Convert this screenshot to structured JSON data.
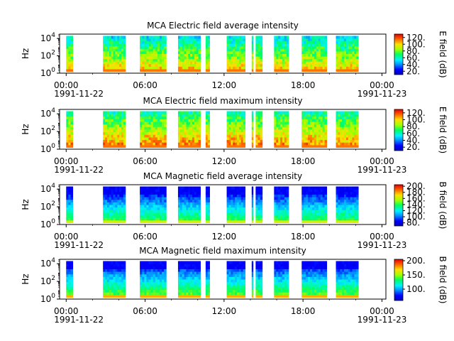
{
  "chart_data": [
    {
      "type": "heatmap",
      "title": "MCA  Electric field average intensity",
      "ylabel": "Hz",
      "y_ticks": [
        {
          "base": "10",
          "exp": "0"
        },
        {
          "base": "10",
          "exp": "2"
        },
        {
          "base": "10",
          "exp": "4"
        }
      ],
      "ylim_hz": [
        1,
        31623
      ],
      "y_scale": "log",
      "x_ticks": [
        "00:00",
        "06:00",
        "12:00",
        "18:00",
        "00:00"
      ],
      "x_dates": {
        "start": "1991-11-22",
        "end": "1991-11-23"
      },
      "xlim_hours": [
        -0.5,
        24.3
      ],
      "colorbar": {
        "label": "E field (dB)",
        "ticks": [
          "20.",
          "40.",
          "60.",
          "80.",
          "100.",
          "120."
        ],
        "range": [
          10,
          130
        ]
      },
      "data_hours": [
        [
          0,
          0.5
        ],
        [
          2.8,
          4.5
        ],
        [
          5.6,
          7.6
        ],
        [
          8.5,
          10.2
        ],
        [
          10.6,
          10.9
        ],
        [
          12.2,
          13.6
        ],
        [
          14.1,
          14.2
        ],
        [
          14.4,
          14.9
        ],
        [
          15.8,
          16.9
        ],
        [
          17.9,
          19.8
        ],
        [
          20.5,
          22.2
        ]
      ],
      "field": "electric",
      "mode": "average"
    },
    {
      "type": "heatmap",
      "title": "MCA  Electric field maximum intensity",
      "ylabel": "Hz",
      "y_ticks": [
        {
          "base": "10",
          "exp": "0"
        },
        {
          "base": "10",
          "exp": "2"
        },
        {
          "base": "10",
          "exp": "4"
        }
      ],
      "ylim_hz": [
        1,
        31623
      ],
      "y_scale": "log",
      "x_ticks": [
        "00:00",
        "06:00",
        "12:00",
        "18:00",
        "00:00"
      ],
      "x_dates": {
        "start": "1991-11-22",
        "end": "1991-11-23"
      },
      "xlim_hours": [
        -0.5,
        24.3
      ],
      "colorbar": {
        "label": "E field (dB)",
        "ticks": [
          "20.",
          "40.",
          "60.",
          "80.",
          "100.",
          "120."
        ],
        "range": [
          10,
          130
        ]
      },
      "data_hours": [
        [
          0,
          0.5
        ],
        [
          2.8,
          4.5
        ],
        [
          5.6,
          7.6
        ],
        [
          8.5,
          10.2
        ],
        [
          10.6,
          10.9
        ],
        [
          12.2,
          13.6
        ],
        [
          14.1,
          14.2
        ],
        [
          14.4,
          14.9
        ],
        [
          15.8,
          16.9
        ],
        [
          17.9,
          19.8
        ],
        [
          20.5,
          22.2
        ]
      ],
      "field": "electric",
      "mode": "maximum"
    },
    {
      "type": "heatmap",
      "title": "MCA  Magnetic field average intensity",
      "ylabel": "Hz",
      "y_ticks": [
        {
          "base": "10",
          "exp": "0"
        },
        {
          "base": "10",
          "exp": "2"
        },
        {
          "base": "10",
          "exp": "4"
        }
      ],
      "ylim_hz": [
        1,
        31623
      ],
      "y_scale": "log",
      "x_ticks": [
        "00:00",
        "06:00",
        "12:00",
        "18:00",
        "00:00"
      ],
      "x_dates": {
        "start": "1991-11-22",
        "end": "1991-11-23"
      },
      "xlim_hours": [
        -0.5,
        24.3
      ],
      "colorbar": {
        "label": "B field (dB)",
        "ticks": [
          "80.",
          "100.",
          "120.",
          "140.",
          "160.",
          "180.",
          "200."
        ],
        "range": [
          70,
          205
        ]
      },
      "data_hours": [
        [
          0,
          0.5
        ],
        [
          2.8,
          4.5
        ],
        [
          5.6,
          7.6
        ],
        [
          8.5,
          10.2
        ],
        [
          10.6,
          10.9
        ],
        [
          12.2,
          13.6
        ],
        [
          14.1,
          14.2
        ],
        [
          14.4,
          14.9
        ],
        [
          15.8,
          16.9
        ],
        [
          17.9,
          19.8
        ],
        [
          20.5,
          22.2
        ]
      ],
      "field": "magnetic",
      "mode": "average"
    },
    {
      "type": "heatmap",
      "title": "MCA  Magnetic field maximum intensity",
      "ylabel": "Hz",
      "y_ticks": [
        {
          "base": "10",
          "exp": "0"
        },
        {
          "base": "10",
          "exp": "2"
        },
        {
          "base": "10",
          "exp": "4"
        }
      ],
      "ylim_hz": [
        1,
        31623
      ],
      "y_scale": "log",
      "x_ticks": [
        "00:00",
        "06:00",
        "12:00",
        "18:00",
        "00:00"
      ],
      "x_dates": {
        "start": "1991-11-22",
        "end": "1991-11-23"
      },
      "xlim_hours": [
        -0.5,
        24.3
      ],
      "colorbar": {
        "label": "B field (dB)",
        "ticks": [
          "100.",
          "150.",
          "200."
        ],
        "range": [
          60,
          205
        ]
      },
      "data_hours": [
        [
          0,
          0.5
        ],
        [
          2.8,
          4.5
        ],
        [
          5.6,
          7.6
        ],
        [
          8.5,
          10.2
        ],
        [
          10.6,
          10.9
        ],
        [
          12.2,
          13.6
        ],
        [
          14.1,
          14.2
        ],
        [
          14.4,
          14.9
        ],
        [
          15.8,
          16.9
        ],
        [
          17.9,
          19.8
        ],
        [
          20.5,
          22.2
        ]
      ],
      "field": "magnetic",
      "mode": "maximum"
    }
  ]
}
